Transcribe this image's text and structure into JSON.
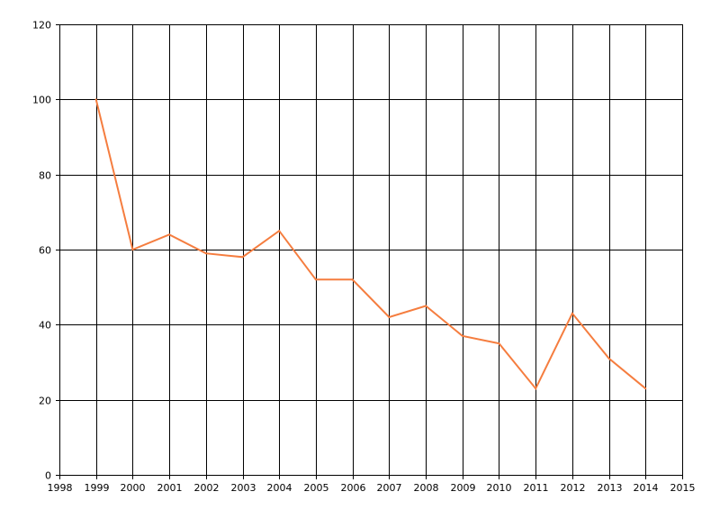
{
  "chart_data": {
    "type": "line",
    "title": "",
    "xlabel": "",
    "ylabel": "",
    "xlim": [
      1998,
      2015
    ],
    "ylim": [
      0,
      120
    ],
    "x_ticks": [
      "1998",
      "1999",
      "2000",
      "2001",
      "2002",
      "2003",
      "2004",
      "2005",
      "2006",
      "2007",
      "2008",
      "2009",
      "2010",
      "2011",
      "2012",
      "2013",
      "2014",
      "2015"
    ],
    "y_ticks": [
      "0",
      "20",
      "40",
      "60",
      "80",
      "100",
      "120"
    ],
    "grid": true,
    "series": [
      {
        "color": "#f57d3f",
        "x": [
          1999,
          2000,
          2001,
          2002,
          2003,
          2004,
          2005,
          2006,
          2007,
          2008,
          2009,
          2010,
          2011,
          2012,
          2013,
          2014
        ],
        "y": [
          100,
          60,
          64,
          59,
          58,
          65,
          52,
          52,
          42,
          45,
          37,
          35,
          23,
          43,
          31,
          23
        ]
      }
    ]
  }
}
